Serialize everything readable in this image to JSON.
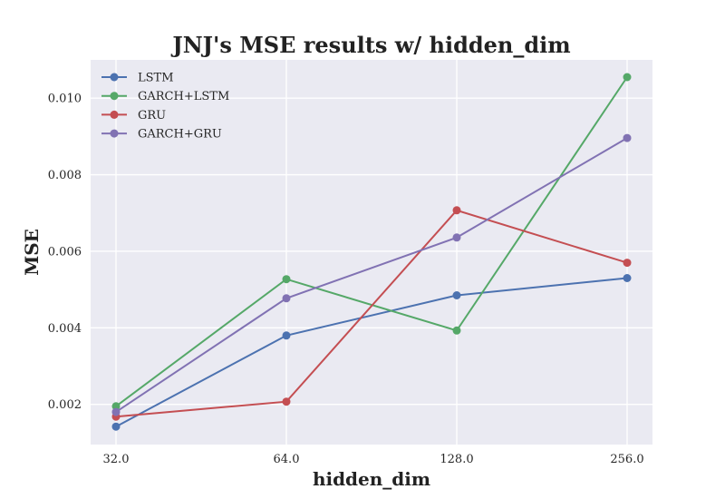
{
  "chart_data": {
    "type": "line",
    "title": "JNJ's MSE results w/ hidden_dim",
    "xlabel": "hidden_dim",
    "ylabel": "MSE",
    "x": [
      32.0,
      64.0,
      128.0,
      256.0
    ],
    "x_tick_labels": [
      "32.0",
      "64.0",
      "128.0",
      "256.0"
    ],
    "x_scale": "log2",
    "y_ticks": [
      0.002,
      0.004,
      0.006,
      0.008,
      0.01
    ],
    "y_tick_labels": [
      "0.002",
      "0.004",
      "0.006",
      "0.008",
      "0.010"
    ],
    "ylim": [
      0.00095,
      0.011
    ],
    "grid": true,
    "legend_position": "top-left",
    "series": [
      {
        "name": "LSTM",
        "color": "#4c72b0",
        "values": [
          0.00142,
          0.0038,
          0.00485,
          0.0053
        ]
      },
      {
        "name": "GARCH+LSTM",
        "color": "#55a868",
        "values": [
          0.00195,
          0.00527,
          0.00393,
          0.01055
        ]
      },
      {
        "name": "GRU",
        "color": "#c44e52",
        "values": [
          0.00168,
          0.00207,
          0.00707,
          0.0057
        ]
      },
      {
        "name": "GARCH+GRU",
        "color": "#8172b3",
        "values": [
          0.0018,
          0.00477,
          0.00636,
          0.00896
        ]
      }
    ]
  }
}
